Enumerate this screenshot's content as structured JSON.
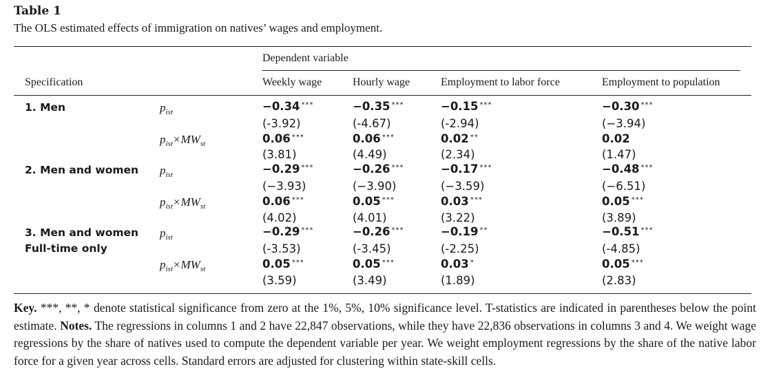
{
  "table": {
    "label": "Table 1",
    "caption": "The OLS estimated effects of immigration on natives’ wages and employment.",
    "dependent_variable_label": "Dependent variable",
    "spec_header": "Specification",
    "columns": [
      "Weekly wage",
      "Hourly wage",
      "Employment to labor force",
      "Employment to population"
    ],
    "specs": [
      {
        "name": "1. Men",
        "name2": ""
      },
      {
        "name": "2. Men and women",
        "name2": ""
      },
      {
        "name": "3. Men and women",
        "name2": "Full-time only"
      }
    ],
    "var_labels": {
      "p": "p",
      "p_sub": "ist",
      "times": "×",
      "mw": "MW",
      "mw_sub": "st"
    },
    "rows": [
      {
        "cells": [
          {
            "v": "−0.34",
            "s": "***"
          },
          {
            "v": "−0.35",
            "s": "***"
          },
          {
            "v": "−0.15",
            "s": "***"
          },
          {
            "v": "−0.30",
            "s": "***"
          }
        ]
      },
      {
        "cells": [
          {
            "v": "(-3.92)"
          },
          {
            "v": "(-4.67)"
          },
          {
            "v": "(-2.94)"
          },
          {
            "v": "(−3.94)"
          }
        ]
      },
      {
        "cells": [
          {
            "v": "0.06",
            "s": "***"
          },
          {
            "v": "0.06",
            "s": "***"
          },
          {
            "v": "0.02",
            "s": "**"
          },
          {
            "v": "0.02",
            "s": ""
          }
        ]
      },
      {
        "cells": [
          {
            "v": "(3.81)"
          },
          {
            "v": "(4.49)"
          },
          {
            "v": "(2.34)"
          },
          {
            "v": "(1.47)"
          }
        ]
      },
      {
        "cells": [
          {
            "v": "−0.29",
            "s": "***"
          },
          {
            "v": "−0.26",
            "s": "***"
          },
          {
            "v": "−0.17",
            "s": "***"
          },
          {
            "v": "−0.48",
            "s": "***"
          }
        ]
      },
      {
        "cells": [
          {
            "v": "(−3.93)"
          },
          {
            "v": "(−3.90)"
          },
          {
            "v": "(−3.59)"
          },
          {
            "v": "(−6.51)"
          }
        ]
      },
      {
        "cells": [
          {
            "v": "0.06",
            "s": "***"
          },
          {
            "v": "0.05",
            "s": "***"
          },
          {
            "v": "0.03",
            "s": "***"
          },
          {
            "v": "0.05",
            "s": "***"
          }
        ]
      },
      {
        "cells": [
          {
            "v": "(4.02)"
          },
          {
            "v": "(4.01)"
          },
          {
            "v": "(3.22)"
          },
          {
            "v": "(3.89)"
          }
        ]
      },
      {
        "cells": [
          {
            "v": "−0.29",
            "s": "***"
          },
          {
            "v": "−0.26",
            "s": "***"
          },
          {
            "v": "−0.19",
            "s": "**"
          },
          {
            "v": "−0.51",
            "s": "***"
          }
        ]
      },
      {
        "cells": [
          {
            "v": "(-3.53)"
          },
          {
            "v": "(-3.45)"
          },
          {
            "v": "(-2.25)"
          },
          {
            "v": "(-4.85)"
          }
        ]
      },
      {
        "cells": [
          {
            "v": "0.05",
            "s": "***"
          },
          {
            "v": "0.05",
            "s": "***"
          },
          {
            "v": "0.03",
            "s": "*"
          },
          {
            "v": "0.05",
            "s": "***"
          }
        ]
      },
      {
        "cells": [
          {
            "v": "(3.59)"
          },
          {
            "v": "(3.49)"
          },
          {
            "v": "(1.89)"
          },
          {
            "v": "(2.83)"
          }
        ]
      }
    ]
  },
  "note": {
    "key_label": "Key.",
    "key_text": " ***, **, * denote statistical significance from zero at the 1%, 5%, 10% significance level. T-statistics are indicated in parentheses below the point estimate. ",
    "notes_label": "Notes.",
    "notes_text": " The regressions in columns 1 and 2 have 22,847 observations, while they have 22,836 observations in columns 3 and 4. We weight wage regressions by the share of natives used to compute the dependent variable per year. We weight employment regressions by the share of the native labor force for a given year across cells. Standard errors are adjusted for clustering within state-skill cells."
  }
}
